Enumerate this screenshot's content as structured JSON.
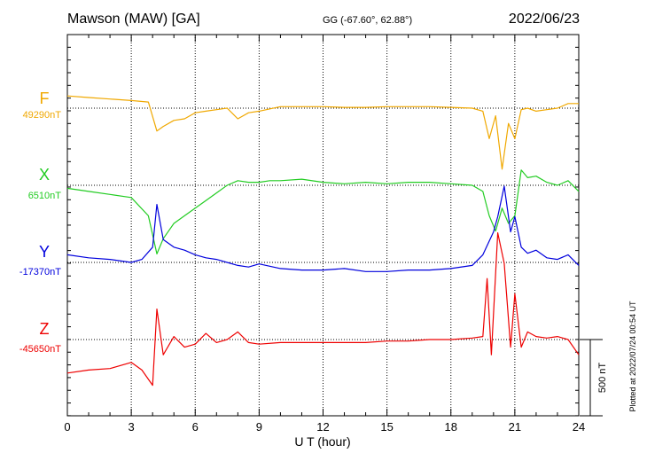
{
  "header": {
    "station": "Mawson (MAW)  [GA]",
    "coords": "GG (-67.60°,  62.88°)",
    "date": "2022/06/23"
  },
  "footer": {
    "plotted": "Plotted at 2022/07/24 00:54 UT"
  },
  "chart_data": {
    "type": "line",
    "xlabel": "U T (hour)",
    "xlim": [
      0,
      24
    ],
    "xticks": [
      "0",
      "3",
      "6",
      "9",
      "12",
      "15",
      "18",
      "21",
      "24"
    ],
    "scale_bar": "500 nT",
    "grid": true,
    "series": [
      {
        "name": "F",
        "baseline_label": "49290nT",
        "color": "#f0a800",
        "x": [
          0,
          1,
          2,
          3,
          3.8,
          4.2,
          4.5,
          5,
          5.5,
          6,
          6.5,
          7,
          7.5,
          8,
          8.5,
          9,
          10,
          11,
          12,
          13,
          14,
          15,
          16,
          17,
          18,
          19,
          19.5,
          19.8,
          20.1,
          20.4,
          20.7,
          21,
          21.3,
          21.6,
          22,
          22.5,
          23,
          23.5,
          24
        ],
        "values": [
          80,
          70,
          60,
          50,
          40,
          -150,
          -120,
          -80,
          -70,
          -30,
          -20,
          -10,
          0,
          -70,
          -30,
          -20,
          10,
          10,
          10,
          5,
          5,
          10,
          10,
          10,
          5,
          0,
          -20,
          -200,
          -50,
          -400,
          -100,
          -200,
          -10,
          0,
          -20,
          -10,
          0,
          30,
          30
        ]
      },
      {
        "name": "X",
        "baseline_label": "6510nT",
        "color": "#22cc22",
        "x": [
          0,
          1,
          2,
          3,
          3.8,
          4.2,
          4.5,
          5,
          5.5,
          6,
          6.5,
          7,
          7.5,
          8,
          8.5,
          9,
          9.5,
          10,
          11,
          12,
          13,
          14,
          15,
          16,
          17,
          18,
          19,
          19.5,
          19.8,
          20.1,
          20.4,
          20.7,
          21,
          21.3,
          21.6,
          22,
          22.5,
          23,
          23.5,
          24
        ],
        "values": [
          -20,
          -40,
          -60,
          -80,
          -200,
          -450,
          -350,
          -250,
          -200,
          -150,
          -100,
          -50,
          0,
          30,
          20,
          20,
          30,
          30,
          40,
          20,
          10,
          20,
          10,
          20,
          20,
          10,
          0,
          -40,
          -200,
          -300,
          -150,
          -250,
          -200,
          100,
          50,
          60,
          20,
          0,
          30,
          -40
        ]
      },
      {
        "name": "Y",
        "baseline_label": "-17370nT",
        "color": "#0000dd",
        "x": [
          0,
          1,
          2,
          3,
          3.5,
          4,
          4.2,
          4.5,
          5,
          5.5,
          6,
          6.5,
          7,
          7.5,
          8,
          8.5,
          9,
          10,
          11,
          12,
          13,
          14,
          15,
          16,
          17,
          18,
          19,
          19.5,
          20,
          20.2,
          20.5,
          20.8,
          21,
          21.3,
          21.6,
          22,
          22.5,
          23,
          23.5,
          24
        ],
        "values": [
          50,
          30,
          20,
          0,
          20,
          100,
          380,
          150,
          100,
          80,
          50,
          30,
          20,
          0,
          -20,
          -30,
          -10,
          -40,
          -50,
          -50,
          -40,
          -60,
          -60,
          -50,
          -50,
          -40,
          -20,
          50,
          200,
          300,
          500,
          200,
          300,
          100,
          60,
          80,
          30,
          20,
          50,
          -20
        ]
      },
      {
        "name": "Z",
        "baseline_label": "-45650nT",
        "color": "#ee0000",
        "x": [
          0,
          1,
          2,
          3,
          3.5,
          4,
          4.2,
          4.5,
          5,
          5.5,
          6,
          6.5,
          7,
          7.5,
          8,
          8.5,
          9,
          10,
          11,
          12,
          13,
          14,
          15,
          16,
          17,
          18,
          19,
          19.5,
          19.7,
          19.9,
          20.2,
          20.5,
          20.8,
          21,
          21.3,
          21.6,
          22,
          22.5,
          23,
          23.5,
          24
        ],
        "values": [
          -220,
          -200,
          -190,
          -150,
          -200,
          -300,
          200,
          -100,
          20,
          -50,
          -30,
          40,
          -20,
          0,
          50,
          -20,
          -30,
          -20,
          -20,
          -20,
          -20,
          -20,
          -10,
          -10,
          0,
          0,
          10,
          20,
          400,
          -100,
          700,
          500,
          -50,
          300,
          -50,
          50,
          20,
          10,
          20,
          0,
          -100
        ]
      }
    ]
  }
}
